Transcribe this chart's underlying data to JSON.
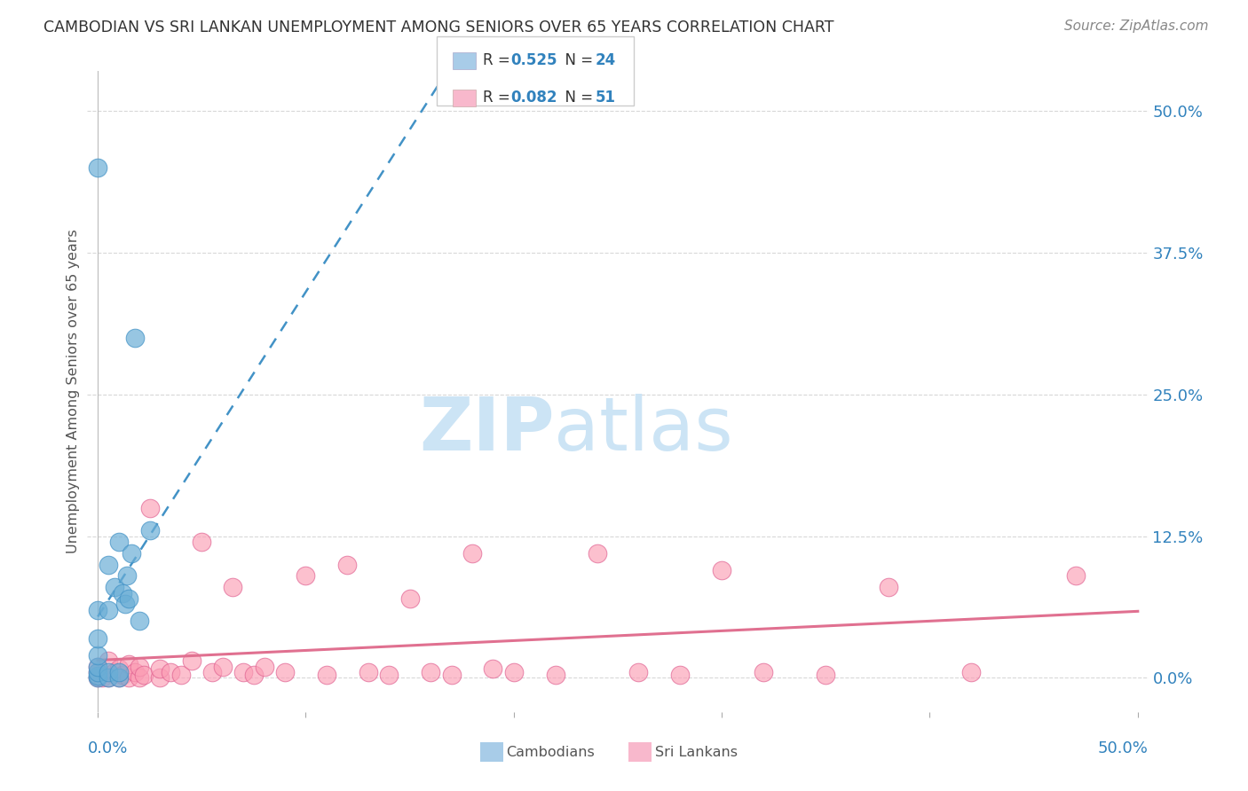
{
  "title": "CAMBODIAN VS SRI LANKAN UNEMPLOYMENT AMONG SENIORS OVER 65 YEARS CORRELATION CHART",
  "source": "Source: ZipAtlas.com",
  "ylabel": "Unemployment Among Seniors over 65 years",
  "ytick_values": [
    0.0,
    0.125,
    0.25,
    0.375,
    0.5
  ],
  "ytick_labels": [
    "0.0%",
    "12.5%",
    "25.0%",
    "37.5%",
    "50.0%"
  ],
  "xlim": [
    -0.005,
    0.505
  ],
  "ylim": [
    -0.03,
    0.535
  ],
  "cambodian_color": "#6baed6",
  "cambodian_edge": "#4292c6",
  "srilanka_color": "#fb9eb5",
  "srilanka_edge": "#e06090",
  "cambodian_R": 0.525,
  "cambodian_N": 24,
  "srilanka_R": 0.082,
  "srilanka_N": 51,
  "blue_text_color": "#3182bd",
  "watermark_zip": "ZIP",
  "watermark_atlas": "atlas",
  "watermark_color": "#cce4f5",
  "background_color": "#ffffff",
  "grid_color": "#d8d8d8",
  "camb_line_color": "#4292c6",
  "sri_line_color": "#e07090",
  "legend_patch_blue": "#a8cce8",
  "legend_patch_pink": "#f8b8cc",
  "cambodian_x": [
    0.0,
    0.0,
    0.0,
    0.0,
    0.0,
    0.0,
    0.0,
    0.0,
    0.005,
    0.005,
    0.005,
    0.005,
    0.008,
    0.01,
    0.01,
    0.01,
    0.012,
    0.013,
    0.014,
    0.015,
    0.016,
    0.018,
    0.02,
    0.025
  ],
  "cambodian_y": [
    0.0,
    0.002,
    0.005,
    0.01,
    0.02,
    0.035,
    0.06,
    0.45,
    0.0,
    0.005,
    0.06,
    0.1,
    0.08,
    0.0,
    0.005,
    0.12,
    0.075,
    0.065,
    0.09,
    0.07,
    0.11,
    0.3,
    0.05,
    0.13
  ],
  "srilanka_x": [
    0.0,
    0.0,
    0.0,
    0.002,
    0.005,
    0.005,
    0.008,
    0.01,
    0.01,
    0.012,
    0.015,
    0.015,
    0.018,
    0.02,
    0.02,
    0.022,
    0.025,
    0.03,
    0.03,
    0.035,
    0.04,
    0.045,
    0.05,
    0.055,
    0.06,
    0.065,
    0.07,
    0.075,
    0.08,
    0.09,
    0.1,
    0.11,
    0.12,
    0.13,
    0.14,
    0.15,
    0.16,
    0.17,
    0.18,
    0.19,
    0.2,
    0.22,
    0.24,
    0.26,
    0.28,
    0.3,
    0.32,
    0.35,
    0.38,
    0.42,
    0.47
  ],
  "srilanka_y": [
    0.0,
    0.005,
    0.01,
    0.0,
    0.0,
    0.015,
    0.005,
    0.0,
    0.008,
    0.003,
    0.0,
    0.012,
    0.005,
    0.0,
    0.01,
    0.003,
    0.15,
    0.0,
    0.008,
    0.005,
    0.003,
    0.015,
    0.12,
    0.005,
    0.01,
    0.08,
    0.005,
    0.003,
    0.01,
    0.005,
    0.09,
    0.003,
    0.1,
    0.005,
    0.003,
    0.07,
    0.005,
    0.003,
    0.11,
    0.008,
    0.005,
    0.003,
    0.11,
    0.005,
    0.003,
    0.095,
    0.005,
    0.003,
    0.08,
    0.005,
    0.09
  ]
}
